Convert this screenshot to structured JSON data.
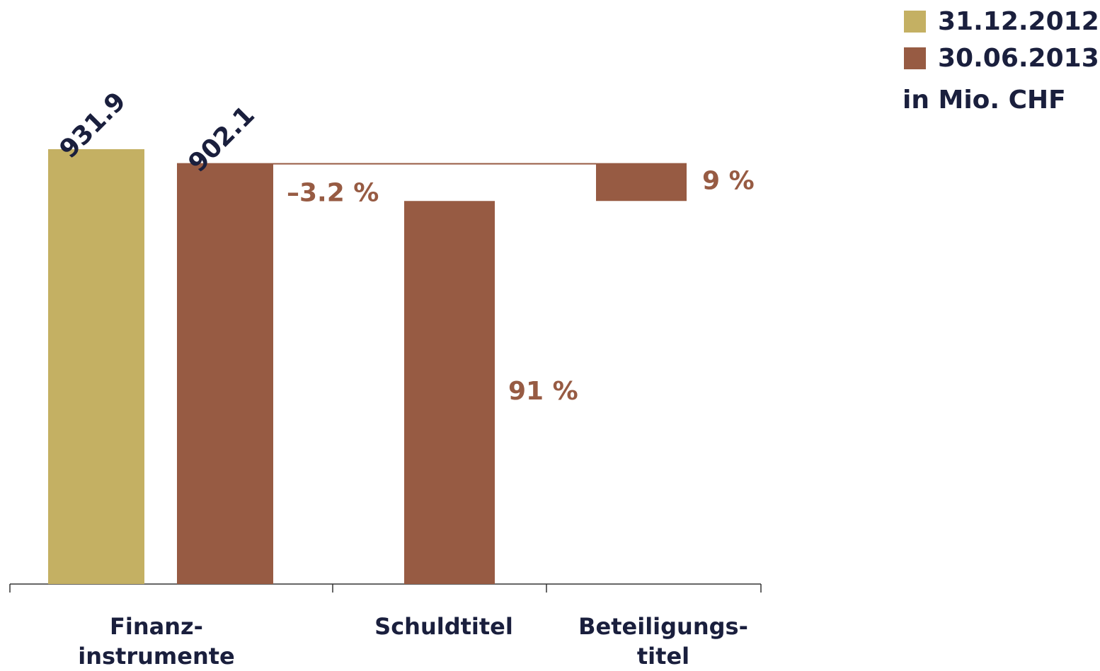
{
  "chart_data": {
    "type": "bar",
    "unit": "in Mio. CHF",
    "categories": [
      [
        "Finanz-",
        "instrumente"
      ],
      [
        "Schuldtitel"
      ],
      [
        "Beteiligungs-",
        "titel"
      ]
    ],
    "series": [
      {
        "name": "31.12.2012",
        "color": "#c4b063",
        "values": [
          931.9,
          null,
          null
        ]
      },
      {
        "name": "30.06.2013",
        "color": "#975b43",
        "values": [
          902.1,
          null,
          null
        ]
      }
    ],
    "change": {
      "value": -3.2,
      "label": "–3.2 %"
    },
    "composition": {
      "values": [
        null,
        91,
        9
      ],
      "value_labels": [
        null,
        "91 %",
        "9 %"
      ]
    },
    "legend": "top-right"
  }
}
